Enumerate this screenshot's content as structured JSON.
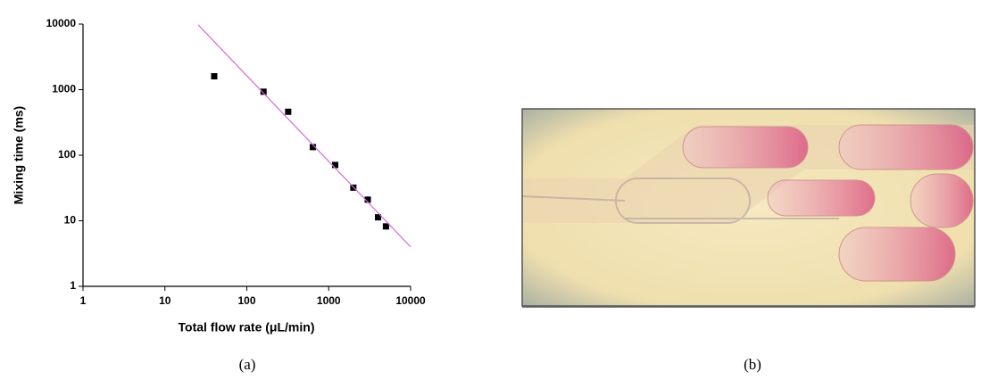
{
  "chart_data": {
    "type": "scatter",
    "log_x": true,
    "log_y": true,
    "x_label": "Total flow rate (μL/min)",
    "y_label": "Mixing time (ms)",
    "xlim": [
      1,
      10000
    ],
    "ylim": [
      1,
      10000
    ],
    "xticks": [
      1,
      10,
      100,
      1000,
      10000
    ],
    "yticks": [
      1,
      10,
      100,
      1000,
      10000
    ],
    "series": [
      {
        "mode": "markers",
        "color": "#000000",
        "x": [
          40,
          160,
          320,
          640,
          1200,
          2000,
          3000,
          4000,
          5000
        ],
        "values": [
          1600,
          930,
          460,
          133,
          71,
          32,
          21,
          11.3,
          8.2
        ]
      },
      {
        "mode": "line",
        "color": "#d46ad4",
        "x": [
          25.5,
          10000
        ],
        "values": [
          9700,
          4
        ]
      }
    ]
  },
  "captions": [
    "(a)",
    "(b)"
  ]
}
